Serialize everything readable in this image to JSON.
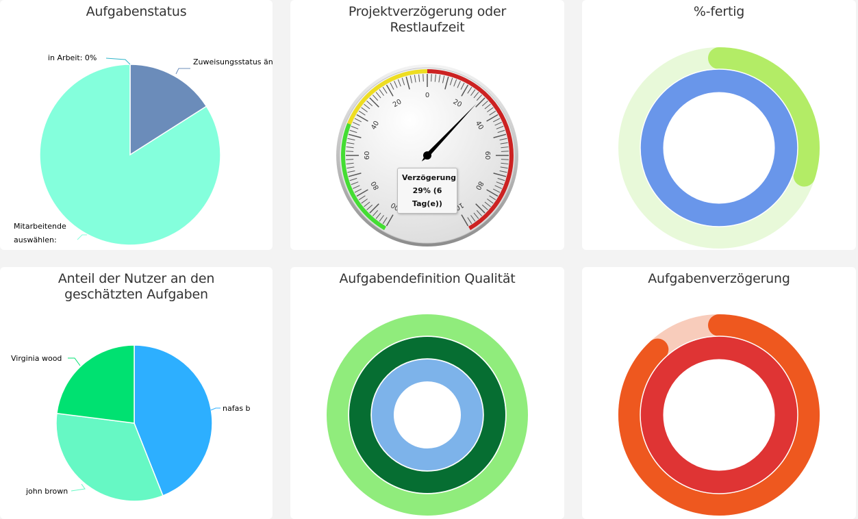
{
  "chart_data": [
    {
      "id": "aufgabenstatus",
      "type": "pie",
      "title": "Aufgabenstatus",
      "slices": [
        {
          "label": "Zuweisungsstatus än",
          "value": 16,
          "color": "#6b8cba"
        },
        {
          "label": "Mitarbeitende auswählen:",
          "value": 84,
          "color": "#84ffdc"
        },
        {
          "label": "in Arbeit: 0%",
          "value": 0,
          "color": "#2fb5c9"
        }
      ]
    },
    {
      "id": "projektverzoegerung",
      "type": "gauge",
      "title": "Projektverzögerung oder Restlaufzeit",
      "ticks_left": [
        "100",
        "80",
        "60",
        "40",
        "20",
        "0"
      ],
      "ticks_right": [
        "20",
        "40",
        "60",
        "80",
        "100"
      ],
      "value_percent": 29,
      "tooltip": {
        "label": "Verzögerung",
        "value": "29% (6 Tag(e))"
      },
      "band_colors": {
        "green": "#44dd33",
        "yellow": "#eedd22",
        "red": "#cc2222"
      }
    },
    {
      "id": "prozent-fertig",
      "type": "donut",
      "title": "%-fertig",
      "rings": [
        {
          "value": 30,
          "color": "#b3ec66",
          "track": "#e8f9d9"
        },
        {
          "value": 100,
          "color": "#6996ea",
          "track": "#6996ea"
        }
      ]
    },
    {
      "id": "anteil-nutzer",
      "type": "pie",
      "title": "Anteil der Nutzer an den geschätzten Aufgaben",
      "slices": [
        {
          "label": "nafas b",
          "value": 44,
          "color": "#2dafff"
        },
        {
          "label": "john brown",
          "value": 33,
          "color": "#66f8c4"
        },
        {
          "label": "Virginia wood",
          "value": 23,
          "color": "#00e171"
        }
      ]
    },
    {
      "id": "aufgabendefinition",
      "type": "donut",
      "title": "Aufgabendefinition Qualität",
      "rings": [
        {
          "value": 100,
          "color": "#90ec7c"
        },
        {
          "value": 100,
          "color": "#066e32"
        },
        {
          "value": 100,
          "color": "#7db3ea"
        }
      ]
    },
    {
      "id": "aufgabenverzoegerung",
      "type": "donut",
      "title": "Aufgabenverzögerung",
      "rings": [
        {
          "value": 88,
          "color": "#ee581f",
          "track": "#f8ccbb"
        },
        {
          "value": 100,
          "color": "#df3434",
          "track": "#df3434"
        }
      ]
    }
  ]
}
